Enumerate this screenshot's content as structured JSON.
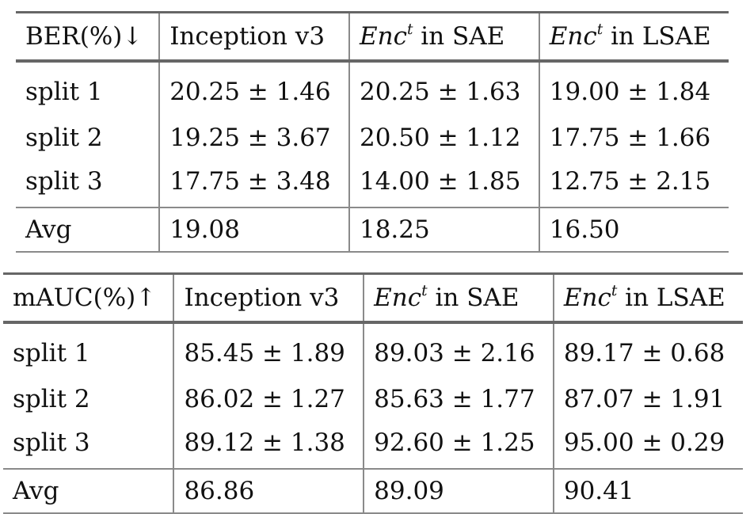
{
  "tables": [
    {
      "header": {
        "metric": "BER(%)↓",
        "col1": "Inception v3",
        "col2_enc": "Enc",
        "col2_sup": "t",
        "col2_rest": " in SAE",
        "col3_enc": "Enc",
        "col3_sup": "t",
        "col3_rest": " in LSAE"
      },
      "rows": [
        {
          "label": "split 1",
          "c1": "20.25 ± 1.46",
          "c2": "20.25 ± 1.63",
          "c3": "19.00 ± 1.84"
        },
        {
          "label": "split 2",
          "c1": "19.25 ± 3.67",
          "c2": "20.50 ± 1.12",
          "c3": "17.75 ± 1.66"
        },
        {
          "label": "split 3",
          "c1": "17.75 ± 3.48",
          "c2": "14.00 ± 1.85",
          "c3": "12.75 ± 2.15"
        },
        {
          "label": "Avg",
          "c1": "19.08",
          "c2": "18.25",
          "c3": "16.50"
        }
      ]
    },
    {
      "header": {
        "metric": "mAUC(%)↑",
        "col1": "Inception v3",
        "col2_enc": "Enc",
        "col2_sup": "t",
        "col2_rest": " in SAE",
        "col3_enc": "Enc",
        "col3_sup": "t",
        "col3_rest": " in LSAE"
      },
      "rows": [
        {
          "label": "split 1",
          "c1": "85.45 ± 1.89",
          "c2": "89.03 ± 2.16",
          "c3": "89.17 ± 0.68"
        },
        {
          "label": "split 2",
          "c1": "86.02 ± 1.27",
          "c2": "85.63 ± 1.77",
          "c3": "87.07 ± 1.91"
        },
        {
          "label": "split 3",
          "c1": "89.12 ± 1.38",
          "c2": "92.60 ± 1.25",
          "c3": "95.00 ± 0.29"
        },
        {
          "label": "Avg",
          "c1": "86.86",
          "c2": "89.09",
          "c3": "90.41"
        }
      ]
    }
  ]
}
